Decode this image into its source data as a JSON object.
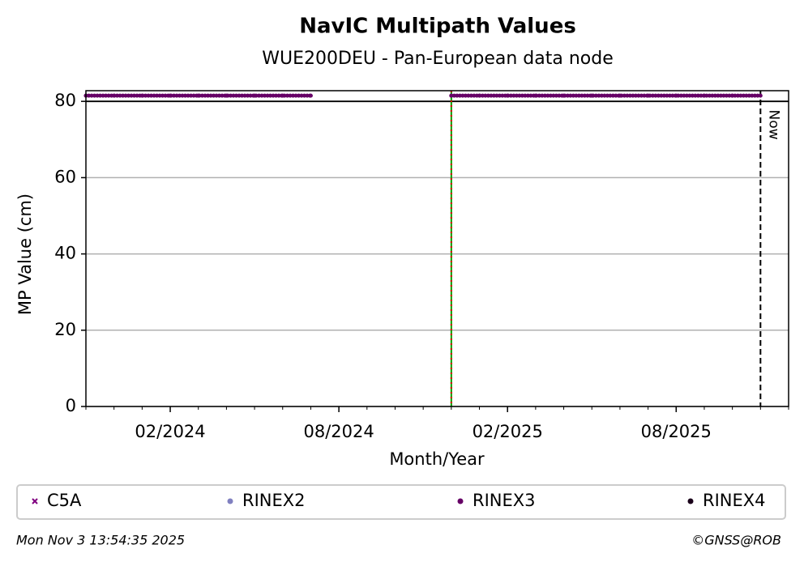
{
  "chart_data": {
    "type": "scatter",
    "title": "NavIC Multipath Values",
    "subtitle": "WUE200DEU - Pan-European data node",
    "xlabel": "Month/Year",
    "ylabel": "MP Value (cm)",
    "x": [
      "2023-11",
      "2023-12",
      "2024-01",
      "2024-02",
      "2024-03",
      "2024-04",
      "2024-05",
      "2024-06",
      "2024-07",
      "2024-08",
      "2024-09",
      "2024-10",
      "2024-11",
      "2024-12",
      "2025-01",
      "2025-02",
      "2025-03",
      "2025-04",
      "2025-05",
      "2025-06",
      "2025-07",
      "2025-08",
      "2025-09",
      "2025-10",
      "2025-11"
    ],
    "series": [
      {
        "name": "C5A",
        "color": "#800080",
        "marker": "x",
        "values": [
          null,
          null,
          null,
          null,
          null,
          null,
          null,
          null,
          null,
          null,
          null,
          null,
          null,
          null,
          null,
          null,
          null,
          null,
          null,
          null,
          null,
          null,
          null,
          null,
          null
        ]
      },
      {
        "name": "RINEX2",
        "color": "#8080c0",
        "marker": "o",
        "values": [
          null,
          null,
          null,
          null,
          null,
          null,
          null,
          null,
          null,
          null,
          null,
          null,
          null,
          null,
          null,
          null,
          null,
          null,
          null,
          null,
          null,
          null,
          null,
          null,
          null
        ]
      },
      {
        "name": "RINEX3",
        "color": "#660066",
        "marker": "o",
        "values": [
          81.5,
          81.5,
          81.5,
          81.5,
          81.5,
          81.5,
          81.5,
          81.5,
          81.5,
          null,
          null,
          null,
          null,
          81.5,
          81.5,
          81.5,
          81.5,
          81.5,
          81.5,
          81.5,
          81.5,
          81.5,
          81.5,
          81.5,
          81.5
        ]
      },
      {
        "name": "RINEX4",
        "color": "#1a001a",
        "marker": "o",
        "values": [
          null,
          null,
          null,
          null,
          null,
          null,
          null,
          null,
          null,
          null,
          null,
          null,
          null,
          null,
          null,
          null,
          null,
          null,
          null,
          null,
          null,
          null,
          null,
          null,
          null
        ]
      }
    ],
    "xlim": [
      "2023-11",
      "2025-12"
    ],
    "xticks": [
      {
        "value": "2024-02",
        "label": "02/2024"
      },
      {
        "value": "2024-08",
        "label": "08/2024"
      },
      {
        "value": "2025-02",
        "label": "02/2025"
      },
      {
        "value": "2025-08",
        "label": "08/2025"
      }
    ],
    "ylim": [
      0,
      82.8
    ],
    "yticks": [
      0,
      20,
      40,
      60,
      80
    ],
    "grid": true,
    "hlines": [
      {
        "value": 80,
        "color": "#000000"
      }
    ],
    "vlines": [
      {
        "x": "2024-12",
        "color": "#00a000",
        "color2": "#e00000"
      },
      {
        "x": "2025-11",
        "color": "#000000",
        "label": "Now"
      }
    ],
    "footer_left": "Mon Nov  3 13:54:35 2025",
    "footer_right": "©GNSS@ROB"
  }
}
